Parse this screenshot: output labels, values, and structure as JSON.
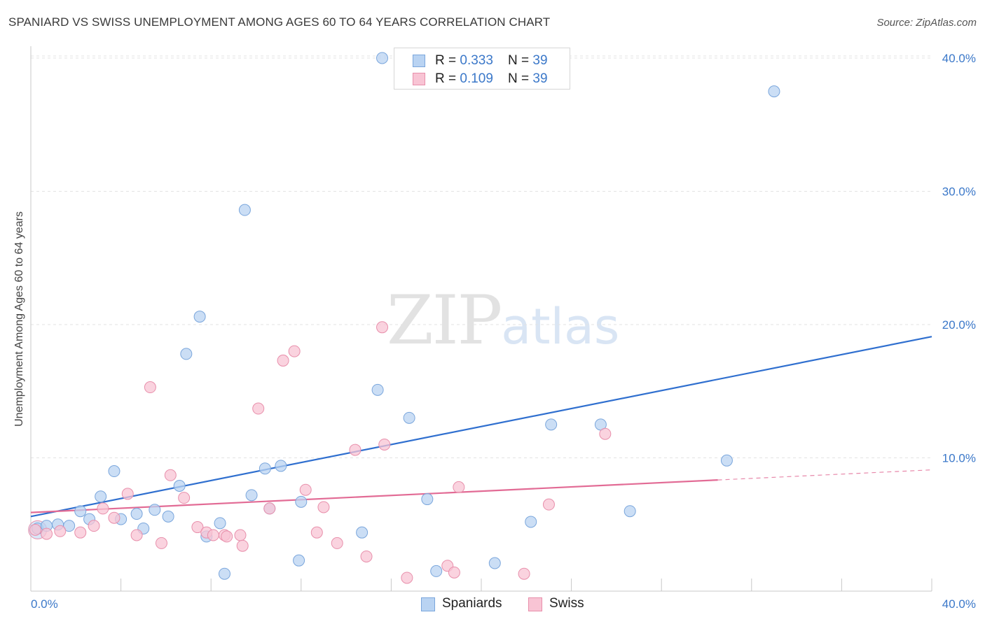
{
  "title": "SPANIARD VS SWISS UNEMPLOYMENT AMONG AGES 60 TO 64 YEARS CORRELATION CHART",
  "source": "Source: ZipAtlas.com",
  "watermark": {
    "zip": "ZIP",
    "atlas": "atlas"
  },
  "legend": {
    "rows": [
      {
        "r_label": "R = ",
        "r_value": "0.333",
        "n_label": "N = ",
        "n_value": "39"
      },
      {
        "r_label": "R = ",
        "r_value": "0.109",
        "n_label": "N = ",
        "n_value": "39"
      }
    ]
  },
  "colors": {
    "blue_fill": "#b9d3f2",
    "blue_stroke": "#7aa6dc",
    "blue_line": "#2f6fcf",
    "pink_fill": "#f8c4d4",
    "pink_stroke": "#e88fab",
    "pink_line": "#e26b95",
    "tick_text": "#3b78c9",
    "grid": "#e3e3e3"
  },
  "chart_data": {
    "type": "scatter",
    "title": "SPANIARD VS SWISS UNEMPLOYMENT AMONG AGES 60 TO 64 YEARS CORRELATION CHART",
    "xlabel": "",
    "ylabel": "Unemployment Among Ages 60 to 64 years",
    "xlim": [
      0,
      40
    ],
    "ylim": [
      0,
      40
    ],
    "x_tick_labels": [
      "0.0%",
      "40.0%"
    ],
    "y_ticks": [
      10,
      20,
      30,
      40
    ],
    "y_tick_labels": [
      "10.0%",
      "20.0%",
      "30.0%",
      "40.0%"
    ],
    "legend_position": "bottom-center",
    "series": [
      {
        "name": "Spaniards",
        "color": "blue",
        "R": 0.333,
        "N": 39,
        "trend": {
          "x0": 0,
          "y0": 5.6,
          "x1": 40,
          "y1": 19.1,
          "solid_until": 40
        },
        "points": [
          [
            0.3,
            4.7
          ],
          [
            0.7,
            4.9
          ],
          [
            1.2,
            5.0
          ],
          [
            1.7,
            4.9
          ],
          [
            2.2,
            6.0
          ],
          [
            2.6,
            5.4
          ],
          [
            3.1,
            7.1
          ],
          [
            3.7,
            9.0
          ],
          [
            4.0,
            5.4
          ],
          [
            4.7,
            5.8
          ],
          [
            5.0,
            4.7
          ],
          [
            5.5,
            6.1
          ],
          [
            6.1,
            5.6
          ],
          [
            6.6,
            7.9
          ],
          [
            6.9,
            17.8
          ],
          [
            7.5,
            20.6
          ],
          [
            7.8,
            4.1
          ],
          [
            8.4,
            5.1
          ],
          [
            8.6,
            1.3
          ],
          [
            9.5,
            28.6
          ],
          [
            9.8,
            7.2
          ],
          [
            10.4,
            9.2
          ],
          [
            10.6,
            6.2
          ],
          [
            11.1,
            9.4
          ],
          [
            11.9,
            2.3
          ],
          [
            12.0,
            6.7
          ],
          [
            14.7,
            4.4
          ],
          [
            15.4,
            15.1
          ],
          [
            15.6,
            40.0
          ],
          [
            16.8,
            13.0
          ],
          [
            17.6,
            6.9
          ],
          [
            18.0,
            1.5
          ],
          [
            20.6,
            2.1
          ],
          [
            22.2,
            5.2
          ],
          [
            23.1,
            12.5
          ],
          [
            25.3,
            12.5
          ],
          [
            26.6,
            6.0
          ],
          [
            30.9,
            9.8
          ],
          [
            33.0,
            37.5
          ]
        ]
      },
      {
        "name": "Swiss",
        "color": "pink",
        "R": 0.109,
        "N": 39,
        "trend": {
          "x0": 0,
          "y0": 5.9,
          "x1": 40,
          "y1": 9.1,
          "solid_until": 30.5
        },
        "points": [
          [
            0.2,
            4.6
          ],
          [
            0.7,
            4.3
          ],
          [
            1.3,
            4.5
          ],
          [
            2.2,
            4.4
          ],
          [
            2.8,
            4.9
          ],
          [
            3.2,
            6.2
          ],
          [
            3.7,
            5.5
          ],
          [
            4.3,
            7.3
          ],
          [
            4.7,
            4.2
          ],
          [
            5.3,
            15.3
          ],
          [
            5.8,
            3.6
          ],
          [
            6.2,
            8.7
          ],
          [
            6.8,
            7.0
          ],
          [
            7.4,
            4.8
          ],
          [
            7.8,
            4.4
          ],
          [
            8.1,
            4.2
          ],
          [
            8.6,
            4.2
          ],
          [
            8.7,
            4.1
          ],
          [
            9.3,
            4.2
          ],
          [
            9.4,
            3.4
          ],
          [
            10.1,
            13.7
          ],
          [
            10.6,
            6.2
          ],
          [
            11.2,
            17.3
          ],
          [
            11.7,
            18.0
          ],
          [
            12.2,
            7.6
          ],
          [
            12.7,
            4.4
          ],
          [
            13.0,
            6.3
          ],
          [
            13.6,
            3.6
          ],
          [
            14.4,
            10.6
          ],
          [
            14.9,
            2.6
          ],
          [
            15.6,
            19.8
          ],
          [
            15.7,
            11.0
          ],
          [
            16.7,
            1.0
          ],
          [
            18.5,
            1.9
          ],
          [
            18.8,
            1.4
          ],
          [
            19.0,
            7.8
          ],
          [
            21.9,
            1.3
          ],
          [
            23.0,
            6.5
          ],
          [
            25.5,
            11.8
          ]
        ]
      }
    ]
  }
}
